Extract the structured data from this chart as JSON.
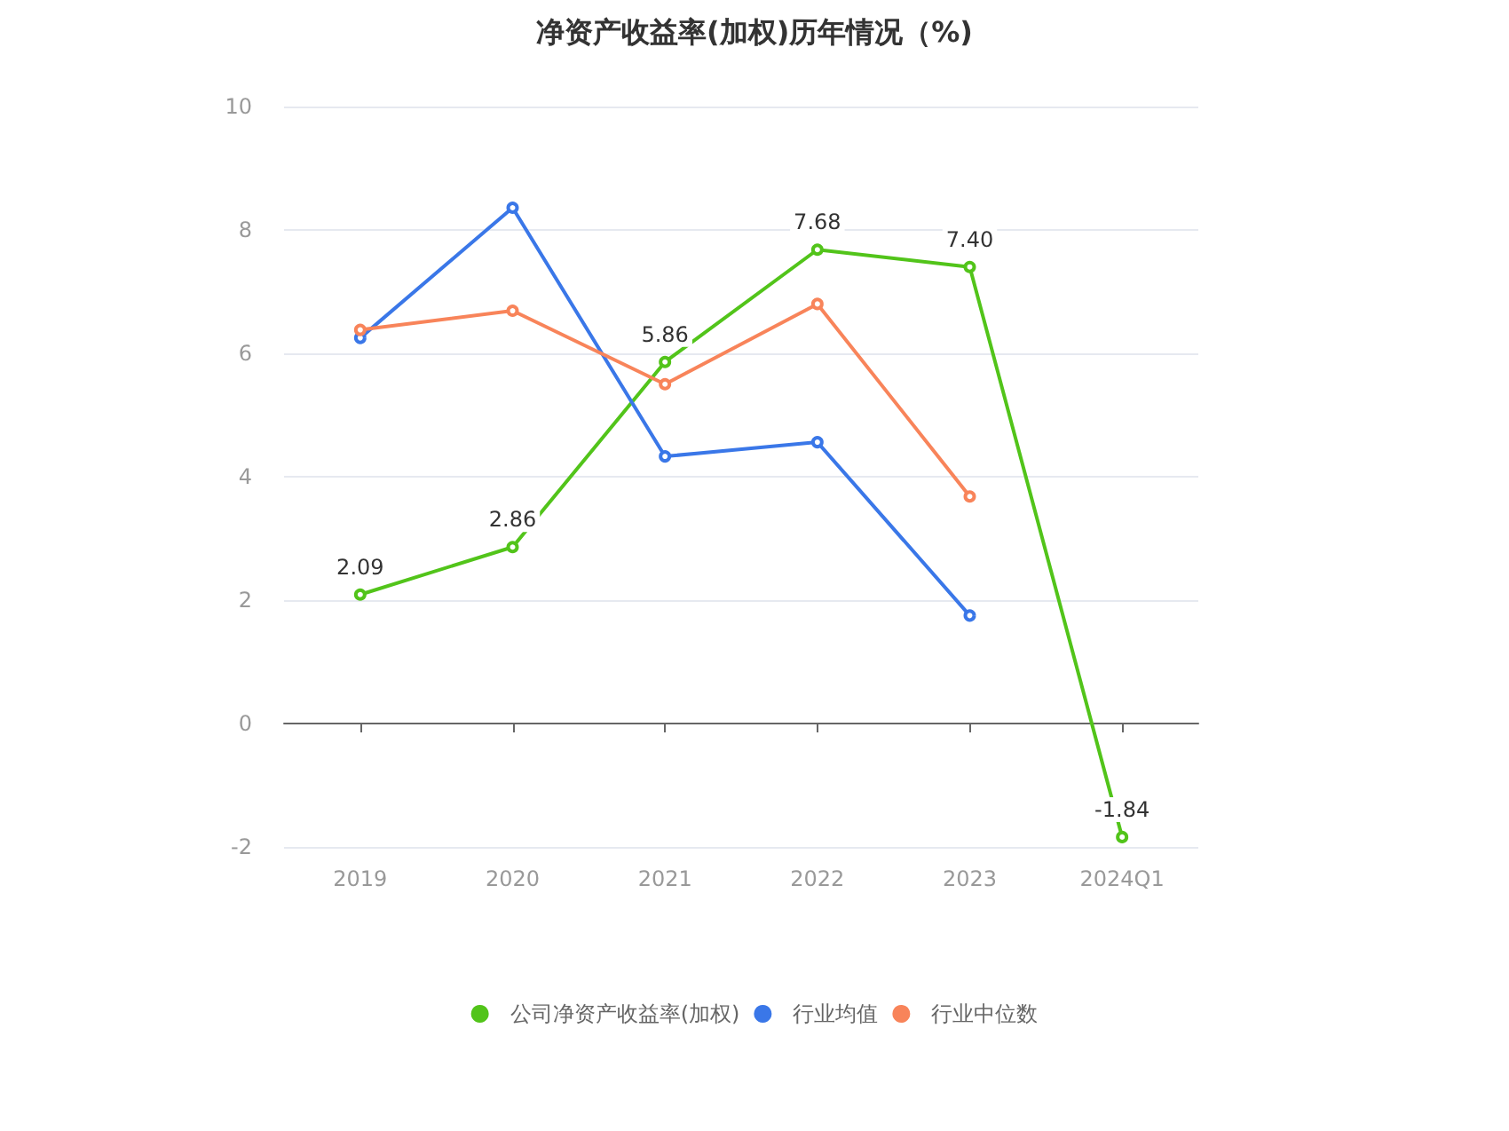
{
  "chart_data": {
    "type": "line",
    "title": "净资产收益率(加权)历年情况（%)",
    "categories": [
      "2019",
      "2020",
      "2021",
      "2022",
      "2023",
      "2024Q1"
    ],
    "series": [
      {
        "name": "公司净资产收益率(加权)",
        "color": "#52c41a",
        "values": [
          2.09,
          2.86,
          5.86,
          7.68,
          7.4,
          -1.84
        ],
        "value_labels": [
          "2.09",
          "2.86",
          "5.86",
          "7.68",
          "7.40",
          "-1.84"
        ]
      },
      {
        "name": "行业均值",
        "color": "#3a77e8",
        "values": [
          6.25,
          8.36,
          4.33,
          4.56,
          1.75,
          null
        ]
      },
      {
        "name": "行业中位数",
        "color": "#f8845a",
        "values": [
          6.38,
          6.69,
          5.5,
          6.8,
          3.68,
          null
        ]
      }
    ],
    "ylim": [
      -2,
      10
    ],
    "yticks": [
      -2,
      0,
      2,
      4,
      6,
      8,
      10
    ],
    "grid": "y",
    "legend": "bottom",
    "marker": "circle",
    "line_style": "solid"
  }
}
